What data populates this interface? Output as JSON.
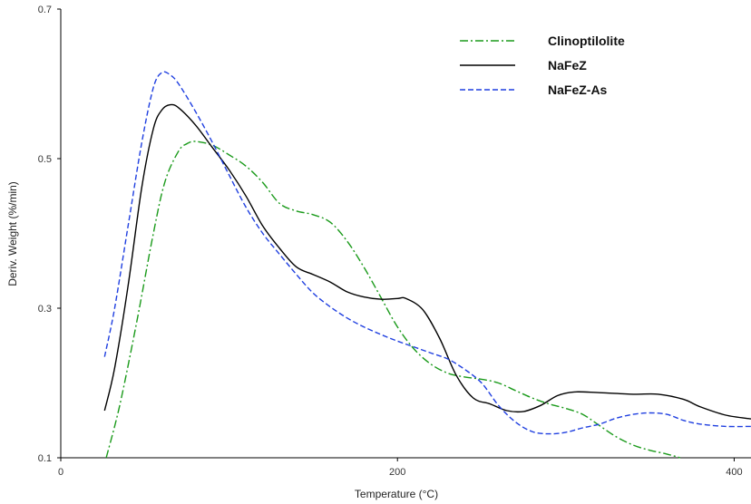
{
  "chart_data": {
    "type": "line",
    "xlabel": "Temperature (°C)",
    "ylabel": "Deriv. Weight (%/min)",
    "xlim": [
      0,
      410
    ],
    "ylim": [
      0.1,
      0.7
    ],
    "x_ticks": [
      0,
      200,
      400
    ],
    "x_tick_labels": [
      "0",
      "200",
      "400"
    ],
    "y_ticks": [
      0.1,
      0.3,
      0.5,
      0.7
    ],
    "y_tick_labels": [
      "0.1",
      "0.3",
      "0.5",
      "0.7"
    ],
    "grid": false,
    "legend_position": "top-right",
    "series": [
      {
        "name": "Clinoptilolite",
        "color": "#1a9a1a",
        "style": "dash-dot",
        "points": [
          [
            27,
            0.1
          ],
          [
            35,
            0.17
          ],
          [
            45,
            0.28
          ],
          [
            55,
            0.4
          ],
          [
            62,
            0.47
          ],
          [
            70,
            0.51
          ],
          [
            75,
            0.52
          ],
          [
            80,
            0.523
          ],
          [
            90,
            0.518
          ],
          [
            100,
            0.505
          ],
          [
            110,
            0.49
          ],
          [
            120,
            0.468
          ],
          [
            130,
            0.44
          ],
          [
            140,
            0.43
          ],
          [
            150,
            0.425
          ],
          [
            160,
            0.415
          ],
          [
            170,
            0.39
          ],
          [
            180,
            0.355
          ],
          [
            190,
            0.315
          ],
          [
            200,
            0.275
          ],
          [
            210,
            0.245
          ],
          [
            220,
            0.225
          ],
          [
            230,
            0.213
          ],
          [
            240,
            0.208
          ],
          [
            250,
            0.205
          ],
          [
            260,
            0.2
          ],
          [
            270,
            0.19
          ],
          [
            280,
            0.18
          ],
          [
            290,
            0.172
          ],
          [
            300,
            0.166
          ],
          [
            310,
            0.158
          ],
          [
            320,
            0.143
          ],
          [
            330,
            0.128
          ],
          [
            340,
            0.117
          ],
          [
            350,
            0.11
          ],
          [
            360,
            0.105
          ],
          [
            368,
            0.1
          ]
        ]
      },
      {
        "name": "NaFeZ",
        "color": "#000000",
        "style": "solid",
        "points": [
          [
            26,
            0.163
          ],
          [
            32,
            0.22
          ],
          [
            40,
            0.33
          ],
          [
            48,
            0.46
          ],
          [
            55,
            0.54
          ],
          [
            60,
            0.565
          ],
          [
            65,
            0.572
          ],
          [
            70,
            0.568
          ],
          [
            80,
            0.545
          ],
          [
            90,
            0.515
          ],
          [
            100,
            0.485
          ],
          [
            110,
            0.45
          ],
          [
            120,
            0.41
          ],
          [
            130,
            0.38
          ],
          [
            140,
            0.355
          ],
          [
            150,
            0.345
          ],
          [
            160,
            0.335
          ],
          [
            170,
            0.322
          ],
          [
            180,
            0.315
          ],
          [
            190,
            0.312
          ],
          [
            200,
            0.313
          ],
          [
            205,
            0.313
          ],
          [
            215,
            0.298
          ],
          [
            225,
            0.26
          ],
          [
            235,
            0.21
          ],
          [
            245,
            0.18
          ],
          [
            255,
            0.172
          ],
          [
            265,
            0.163
          ],
          [
            275,
            0.162
          ],
          [
            285,
            0.17
          ],
          [
            295,
            0.183
          ],
          [
            305,
            0.188
          ],
          [
            320,
            0.187
          ],
          [
            340,
            0.185
          ],
          [
            355,
            0.185
          ],
          [
            370,
            0.178
          ],
          [
            380,
            0.168
          ],
          [
            395,
            0.157
          ],
          [
            410,
            0.152
          ]
        ]
      },
      {
        "name": "NaFeZ-As",
        "color": "#1f3fe0",
        "style": "dashed",
        "points": [
          [
            26,
            0.235
          ],
          [
            32,
            0.3
          ],
          [
            40,
            0.41
          ],
          [
            48,
            0.52
          ],
          [
            55,
            0.595
          ],
          [
            60,
            0.615
          ],
          [
            65,
            0.612
          ],
          [
            70,
            0.6
          ],
          [
            80,
            0.563
          ],
          [
            90,
            0.522
          ],
          [
            100,
            0.478
          ],
          [
            110,
            0.435
          ],
          [
            120,
            0.4
          ],
          [
            130,
            0.372
          ],
          [
            140,
            0.345
          ],
          [
            150,
            0.32
          ],
          [
            160,
            0.302
          ],
          [
            170,
            0.287
          ],
          [
            180,
            0.275
          ],
          [
            190,
            0.265
          ],
          [
            200,
            0.256
          ],
          [
            210,
            0.248
          ],
          [
            220,
            0.24
          ],
          [
            230,
            0.232
          ],
          [
            240,
            0.218
          ],
          [
            250,
            0.2
          ],
          [
            260,
            0.17
          ],
          [
            270,
            0.148
          ],
          [
            280,
            0.135
          ],
          [
            290,
            0.132
          ],
          [
            300,
            0.134
          ],
          [
            310,
            0.14
          ],
          [
            320,
            0.145
          ],
          [
            330,
            0.153
          ],
          [
            340,
            0.158
          ],
          [
            350,
            0.16
          ],
          [
            360,
            0.158
          ],
          [
            370,
            0.15
          ],
          [
            380,
            0.145
          ],
          [
            395,
            0.142
          ],
          [
            410,
            0.142
          ]
        ]
      }
    ]
  }
}
